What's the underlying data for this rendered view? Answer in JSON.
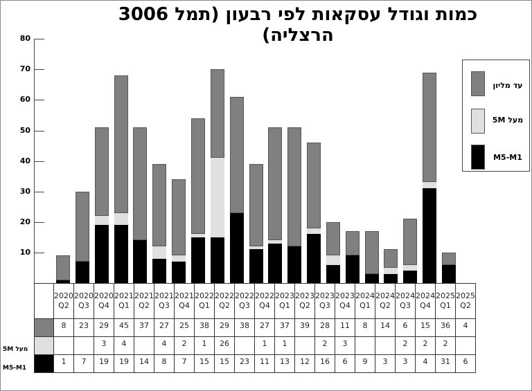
{
  "title": "כמות וגודל עסקאות לפי רבעון (תמל 3006 הרצליה)",
  "colors": {
    "up_to_million": "#808080",
    "above_5M": "#e0e0e0",
    "M1_M5": "#000000"
  },
  "legend": [
    {
      "label": "עד מליון",
      "color": "#808080"
    },
    {
      "label": "מעל 5M",
      "color": "#e0e0e0"
    },
    {
      "label": "M5-M1",
      "color": "#000000"
    }
  ],
  "y_axis": {
    "ticks": [
      "80",
      "70",
      "60",
      "50",
      "40",
      "30",
      "20",
      "10"
    ]
  },
  "table": {
    "row_labels": [
      "",
      "מעל 5M",
      "M5-M1"
    ],
    "years": [
      "2020",
      "2020",
      "2020",
      "2021",
      "2021",
      "2021",
      "2021",
      "2022",
      "2022",
      "2022",
      "2022",
      "2023",
      "2023",
      "2023",
      "2023",
      "2024",
      "2024",
      "2024",
      "2024",
      "2025",
      "2025"
    ],
    "quarters": [
      "Q2",
      "Q3",
      "Q4",
      "Q1",
      "Q2",
      "Q3",
      "Q4",
      "Q1",
      "Q2",
      "Q3",
      "Q4",
      "Q1",
      "Q2",
      "Q3",
      "Q4",
      "Q1",
      "Q2",
      "Q3",
      "Q4",
      "Q1",
      "Q2"
    ],
    "up_to_million": [
      "8",
      "23",
      "29",
      "45",
      "37",
      "27",
      "25",
      "38",
      "29",
      "38",
      "27",
      "37",
      "39",
      "28",
      "11",
      "8",
      "14",
      "6",
      "15",
      "36",
      "4"
    ],
    "above_5M": [
      "",
      "",
      "3",
      "4",
      "",
      "4",
      "2",
      "1",
      "26",
      "",
      "1",
      "1",
      "",
      "2",
      "3",
      "",
      "",
      "2",
      "2",
      "2",
      ""
    ],
    "M1_M5": [
      "1",
      "7",
      "19",
      "19",
      "14",
      "8",
      "7",
      "15",
      "15",
      "23",
      "11",
      "13",
      "12",
      "16",
      "6",
      "9",
      "3",
      "3",
      "4",
      "31",
      "6"
    ]
  },
  "chart_data": {
    "type": "bar",
    "stacked": true,
    "title": "כמות וגודל עסקאות לפי רבעון (תמל 3006 הרצליה)",
    "xlabel": "",
    "ylabel": "",
    "ylim": [
      0,
      80
    ],
    "yticks": [
      10,
      20,
      30,
      40,
      50,
      60,
      70,
      80
    ],
    "grid": false,
    "legend_position": "right",
    "categories": [
      "2020 Q2",
      "2020 Q3",
      "2020 Q4",
      "2021 Q1",
      "2021 Q2",
      "2021 Q3",
      "2021 Q4",
      "2022 Q1",
      "2022 Q2",
      "2022 Q3",
      "2022 Q4",
      "2023 Q1",
      "2023 Q2",
      "2023 Q3",
      "2023 Q4",
      "2024 Q1",
      "2024 Q2",
      "2024 Q3",
      "2024 Q4",
      "2025 Q1",
      "2025 Q2"
    ],
    "series": [
      {
        "name": "M5-M1",
        "color": "#000000",
        "values": [
          1,
          7,
          19,
          19,
          14,
          8,
          7,
          15,
          15,
          23,
          11,
          13,
          12,
          16,
          6,
          9,
          3,
          3,
          4,
          31,
          6
        ]
      },
      {
        "name": "מעל 5M",
        "color": "#e0e0e0",
        "values": [
          0,
          0,
          3,
          4,
          0,
          4,
          2,
          1,
          26,
          0,
          1,
          1,
          0,
          2,
          3,
          0,
          0,
          2,
          2,
          2,
          0
        ]
      },
      {
        "name": "עד מליון",
        "color": "#808080",
        "values": [
          8,
          23,
          29,
          45,
          37,
          27,
          25,
          38,
          29,
          38,
          27,
          37,
          39,
          28,
          11,
          8,
          14,
          6,
          15,
          36,
          4
        ]
      }
    ]
  }
}
